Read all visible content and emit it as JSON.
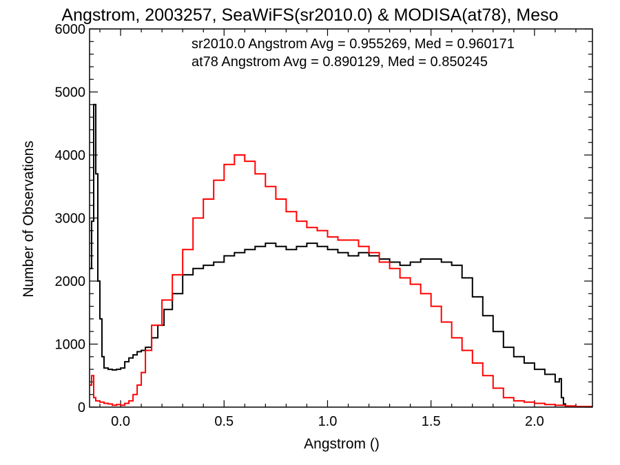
{
  "chart_data": {
    "type": "line",
    "title": "Angstrom, 2003257, SeaWiFS(sr2010.0) & MODISA(at78), Meso",
    "xlabel": "Angstrom ()",
    "ylabel": "Number of Observations",
    "xlim": [
      -0.15,
      2.28
    ],
    "ylim": [
      0,
      6000
    ],
    "x_ticks": [
      0.0,
      0.5,
      1.0,
      1.5,
      2.0
    ],
    "x_tick_labels": [
      "0.0",
      "0.5",
      "1.0",
      "1.5",
      "2.0"
    ],
    "y_ticks": [
      0,
      1000,
      2000,
      3000,
      4000,
      5000,
      6000
    ],
    "y_tick_labels": [
      "0",
      "1000",
      "2000",
      "3000",
      "4000",
      "5000",
      "6000"
    ],
    "grid": false,
    "annotations": [
      {
        "text": "sr2010.0 Angstrom Avg = 0.955269, Med = 0.960171",
        "color": "#000000"
      },
      {
        "text": "at78 Angstrom Avg = 0.890129, Med = 0.850245",
        "color": "#ff0000"
      }
    ],
    "series": [
      {
        "color": "#000000",
        "x": [
          -0.15,
          -0.14,
          -0.13,
          -0.12,
          -0.11,
          -0.1,
          -0.09,
          -0.08,
          -0.06,
          -0.04,
          -0.02,
          0.0,
          0.02,
          0.04,
          0.06,
          0.08,
          0.1,
          0.12,
          0.15,
          0.18,
          0.21,
          0.25,
          0.3,
          0.35,
          0.4,
          0.45,
          0.5,
          0.55,
          0.6,
          0.65,
          0.7,
          0.75,
          0.8,
          0.85,
          0.9,
          0.95,
          1.0,
          1.05,
          1.1,
          1.15,
          1.2,
          1.25,
          1.3,
          1.35,
          1.4,
          1.45,
          1.5,
          1.55,
          1.6,
          1.65,
          1.7,
          1.75,
          1.8,
          1.85,
          1.9,
          1.95,
          2.0,
          2.05,
          2.1,
          2.12,
          2.13,
          2.14,
          2.15
        ],
        "y": [
          2200,
          2950,
          4800,
          3700,
          2000,
          1400,
          800,
          620,
          600,
          590,
          600,
          620,
          720,
          780,
          830,
          880,
          900,
          950,
          1100,
          1300,
          1550,
          1800,
          2100,
          2200,
          2250,
          2300,
          2400,
          2450,
          2500,
          2550,
          2600,
          2550,
          2500,
          2550,
          2600,
          2550,
          2500,
          2450,
          2400,
          2450,
          2400,
          2350,
          2300,
          2250,
          2300,
          2350,
          2350,
          2300,
          2250,
          2050,
          1750,
          1450,
          1200,
          950,
          800,
          700,
          600,
          520,
          400,
          450,
          150,
          50,
          0
        ]
      },
      {
        "color": "#ff0000",
        "x": [
          -0.15,
          -0.14,
          -0.13,
          -0.12,
          -0.1,
          -0.08,
          -0.06,
          -0.04,
          -0.02,
          0.0,
          0.02,
          0.04,
          0.06,
          0.08,
          0.1,
          0.12,
          0.15,
          0.2,
          0.25,
          0.3,
          0.35,
          0.4,
          0.45,
          0.5,
          0.55,
          0.6,
          0.65,
          0.7,
          0.75,
          0.8,
          0.85,
          0.9,
          0.95,
          1.0,
          1.05,
          1.1,
          1.15,
          1.2,
          1.25,
          1.3,
          1.35,
          1.4,
          1.45,
          1.5,
          1.55,
          1.6,
          1.65,
          1.7,
          1.75,
          1.8,
          1.85,
          1.9,
          1.95,
          2.0,
          2.05,
          2.1,
          2.15,
          2.2,
          2.28
        ],
        "y": [
          350,
          500,
          150,
          100,
          80,
          60,
          50,
          30,
          40,
          30,
          60,
          100,
          200,
          350,
          550,
          900,
          1300,
          1700,
          2100,
          2500,
          3000,
          3300,
          3600,
          3850,
          4000,
          3900,
          3700,
          3500,
          3300,
          3100,
          2950,
          2850,
          2800,
          2700,
          2650,
          2650,
          2550,
          2450,
          2300,
          2200,
          2050,
          1950,
          1800,
          1600,
          1350,
          1100,
          900,
          700,
          500,
          300,
          150,
          100,
          80,
          60,
          40,
          30,
          20,
          10,
          10
        ]
      }
    ]
  }
}
